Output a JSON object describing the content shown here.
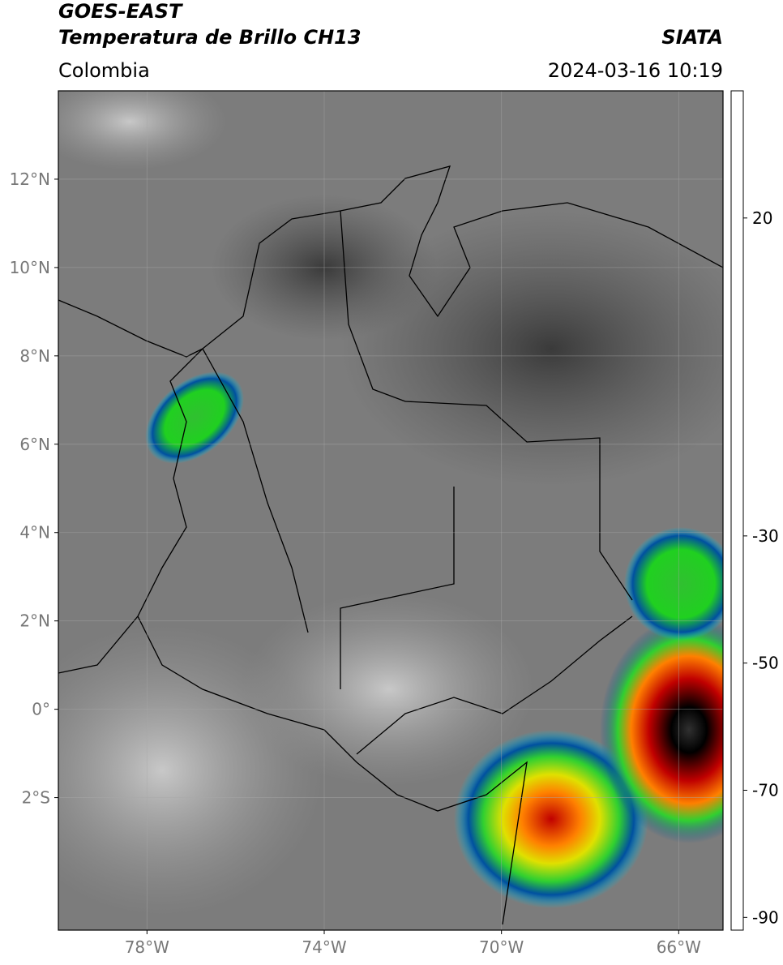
{
  "header": {
    "satellite": "GOES-EAST",
    "product": "Temperatura de Brillo CH13",
    "organization": "SIATA",
    "region": "Colombia",
    "datetime": "2024-03-16 10:19"
  },
  "map": {
    "xlim": [
      -80,
      -65
    ],
    "ylim": [
      -5,
      14
    ],
    "xticks": [
      {
        "value": -78,
        "label": "78°W"
      },
      {
        "value": -74,
        "label": "74°W"
      },
      {
        "value": -70,
        "label": "70°W"
      },
      {
        "value": -66,
        "label": "66°W"
      }
    ],
    "yticks": [
      {
        "value": 12,
        "label": "12°N"
      },
      {
        "value": 10,
        "label": "10°N"
      },
      {
        "value": 8,
        "label": "8°N"
      },
      {
        "value": 6,
        "label": "6°N"
      },
      {
        "value": 4,
        "label": "4°N"
      },
      {
        "value": 2,
        "label": "2°N"
      },
      {
        "value": 0,
        "label": "0°"
      },
      {
        "value": -2,
        "label": "2°S"
      }
    ],
    "grid": true
  },
  "colorbar": {
    "range": [
      -92,
      40
    ],
    "ticks": [
      20,
      -30,
      -50,
      -70,
      -90
    ],
    "stops": [
      [
        -92,
        "#ffffff"
      ],
      [
        -89.9,
        "#ffffff"
      ],
      [
        -89.9,
        "#8b1a8b"
      ],
      [
        -85,
        "#c040c0"
      ],
      [
        -80,
        "#ff80e0"
      ],
      [
        -80,
        "#d0c0c0"
      ],
      [
        -75,
        "#808080"
      ],
      [
        -71,
        "#202020"
      ],
      [
        -68,
        "#000000"
      ],
      [
        -65,
        "#600000"
      ],
      [
        -60,
        "#c00000"
      ],
      [
        -55,
        "#ff4000"
      ],
      [
        -52,
        "#ff9000"
      ],
      [
        -50,
        "#ffe000"
      ],
      [
        -45,
        "#c0ff00"
      ],
      [
        -40,
        "#20d020"
      ],
      [
        -36,
        "#00a040"
      ],
      [
        -33,
        "#0060a0"
      ],
      [
        -30,
        "#001880"
      ],
      [
        -26,
        "#0060c0"
      ],
      [
        -22,
        "#00c0e0"
      ],
      [
        -22,
        "#ffffff"
      ],
      [
        0,
        "#b0b0b0"
      ],
      [
        20,
        "#606060"
      ],
      [
        40,
        "#000000"
      ]
    ]
  }
}
